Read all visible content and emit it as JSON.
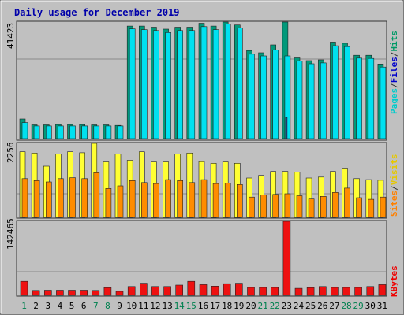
{
  "chart_data": {
    "type": "bar",
    "title": "Daily usage for December 2019",
    "categories": [
      "1",
      "2",
      "3",
      "4",
      "5",
      "6",
      "7",
      "8",
      "9",
      "10",
      "11",
      "12",
      "13",
      "14",
      "15",
      "16",
      "17",
      "18",
      "19",
      "20",
      "21",
      "22",
      "23",
      "24",
      "25",
      "26",
      "27",
      "28",
      "29",
      "30",
      "31"
    ],
    "weekend_days": [
      "1",
      "7",
      "8",
      "14",
      "15",
      "21",
      "22",
      "28",
      "29"
    ],
    "panels": [
      {
        "id": "top",
        "ymax_label": "41423",
        "ylim": [
          0,
          41423
        ],
        "side_labels": [
          {
            "text": "Pages",
            "color": "#00cccc"
          },
          {
            "text": "/",
            "color": "#333333"
          },
          {
            "text": "Files",
            "color": "#0000cc"
          },
          {
            "text": "/",
            "color": "#333333"
          },
          {
            "text": "Hits",
            "color": "#009966"
          }
        ],
        "series": [
          {
            "name": "Hits",
            "color": "#00997a",
            "values": [
              7000,
              4900,
              4900,
              5000,
              5000,
              5000,
              4900,
              4900,
              4700,
              40000,
              40000,
              39600,
              38900,
              39600,
              39600,
              41000,
              40000,
              41423,
              40400,
              31300,
              30500,
              33300,
              41423,
              28700,
              27700,
              28000,
              34300,
              33900,
              29600,
              29600,
              26500
            ]
          },
          {
            "name": "Pages",
            "color": "#00e1f0",
            "values": [
              5700,
              4500,
              4500,
              4500,
              4500,
              4500,
              4500,
              4500,
              4500,
              39000,
              38700,
              38400,
              37700,
              38400,
              38400,
              39800,
              38700,
              40700,
              39300,
              30000,
              29400,
              31500,
              29400,
              27600,
              26600,
              26900,
              33000,
              32700,
              28600,
              28500,
              25400
            ]
          },
          {
            "name": "Files",
            "color": "#1f3f99",
            "values": [
              0,
              0,
              0,
              0,
              0,
              0,
              0,
              0,
              0,
              0,
              0,
              0,
              0,
              0,
              0,
              0,
              0,
              0,
              0,
              0,
              0,
              0,
              7500,
              0,
              0,
              0,
              0,
              0,
              0,
              0,
              0
            ]
          }
        ]
      },
      {
        "id": "middle",
        "ymax_label": "2256",
        "ylim": [
          0,
          2256
        ],
        "side_labels": [
          {
            "text": "Sites",
            "color": "#ff8000"
          },
          {
            "text": "/",
            "color": "#333333"
          },
          {
            "text": "Visits",
            "color": "#e6c800"
          }
        ],
        "series": [
          {
            "name": "Visits",
            "color": "#ffff33",
            "values": [
              2000,
              1960,
              1560,
              1930,
              2000,
              1970,
              2256,
              1690,
              1930,
              1740,
              2000,
              1690,
              1690,
              1930,
              1960,
              1700,
              1650,
              1690,
              1650,
              1200,
              1280,
              1400,
              1400,
              1380,
              1200,
              1230,
              1400,
              1500,
              1180,
              1150,
              1130
            ]
          },
          {
            "name": "Sites",
            "color": "#ff8c00",
            "values": [
              1180,
              1120,
              1080,
              1180,
              1210,
              1180,
              1360,
              880,
              960,
              1120,
              1060,
              1030,
              1150,
              1120,
              1060,
              1150,
              1030,
              1040,
              1000,
              620,
              680,
              700,
              720,
              660,
              560,
              640,
              760,
              890,
              600,
              550,
              620
            ]
          }
        ]
      },
      {
        "id": "bottom",
        "ymax_label": "142465",
        "ylim": [
          0,
          142465
        ],
        "side_labels": [
          {
            "text": "KBytes",
            "color": "#ee0000"
          }
        ],
        "series": [
          {
            "name": "KBytes",
            "color": "#ee1111",
            "values": [
              27000,
              9400,
              9800,
              9800,
              9800,
              9800,
              9400,
              14800,
              7600,
              17000,
              23300,
              17000,
              17000,
              19700,
              27000,
              20600,
              17700,
              22400,
              23300,
              15200,
              15200,
              15200,
              142465,
              13500,
              14800,
              17000,
              15200,
              15200,
              15200,
              17000,
              20600
            ]
          }
        ]
      }
    ]
  }
}
